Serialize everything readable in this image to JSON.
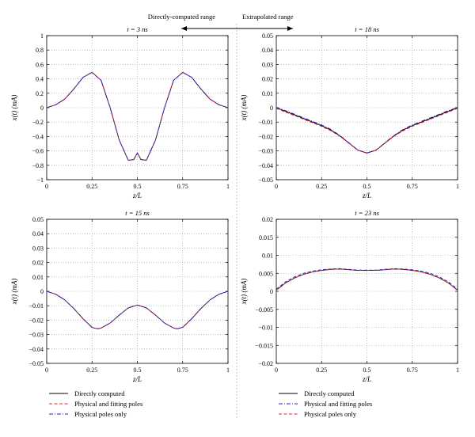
{
  "header": {
    "left": "Directly-computed range",
    "right": "Extrapolated range"
  },
  "colors": {
    "directly_computed": "#000000",
    "physical_and_fitting": "#e8202a",
    "physical_only": "#2323c8",
    "grid": "#9a9a9a",
    "divider": "#9a9a9a"
  },
  "chart_data": [
    {
      "type": "line",
      "title": "t = 3 ns",
      "xlabel": "z/L",
      "ylabel": "x(t) (mA)",
      "xlim": [
        0,
        1
      ],
      "ylim": [
        -1,
        1
      ],
      "xticks": [
        "0",
        "0.25",
        "0.5",
        "0.75",
        "1"
      ],
      "yticks": [
        "1",
        "0.8",
        "0.6",
        "0.4",
        "0.2",
        "0",
        "−0.2",
        "−0.4",
        "−0.6",
        "−0.8",
        "−1"
      ],
      "grid": true,
      "x": [
        0,
        0.05,
        0.1,
        0.15,
        0.2,
        0.25,
        0.3,
        0.35,
        0.4,
        0.45,
        0.48,
        0.5,
        0.52,
        0.55,
        0.6,
        0.65,
        0.7,
        0.75,
        0.8,
        0.85,
        0.9,
        0.95,
        1
      ],
      "series": [
        {
          "name": "Directly computed",
          "values": [
            0,
            0.04,
            0.12,
            0.26,
            0.42,
            0.49,
            0.38,
            0.0,
            -0.45,
            -0.73,
            -0.72,
            -0.63,
            -0.72,
            -0.73,
            -0.45,
            0.0,
            0.38,
            0.49,
            0.42,
            0.26,
            0.12,
            0.04,
            0
          ]
        },
        {
          "name": "Physical and fitting poles",
          "values": [
            0,
            0.04,
            0.12,
            0.26,
            0.42,
            0.49,
            0.38,
            0.0,
            -0.45,
            -0.73,
            -0.72,
            -0.63,
            -0.72,
            -0.73,
            -0.45,
            0.0,
            0.38,
            0.49,
            0.42,
            0.26,
            0.12,
            0.04,
            0
          ]
        },
        {
          "name": "Physical poles only",
          "values": [
            0,
            0.04,
            0.12,
            0.26,
            0.42,
            0.49,
            0.38,
            0.0,
            -0.45,
            -0.73,
            -0.72,
            -0.63,
            -0.72,
            -0.73,
            -0.45,
            0.0,
            0.38,
            0.49,
            0.42,
            0.26,
            0.12,
            0.04,
            0
          ]
        }
      ]
    },
    {
      "type": "line",
      "title": "t = 18 ns",
      "xlabel": "z/L",
      "ylabel": "x(t) (mA)",
      "xlim": [
        0,
        1
      ],
      "ylim": [
        -0.05,
        0.05
      ],
      "xticks": [
        "0",
        "0.25",
        "0.5",
        "0.75",
        "1"
      ],
      "yticks": [
        "0.05",
        "0.04",
        "0.03",
        "0.02",
        "0.01",
        "0",
        "−0.01",
        "−0.02",
        "−0.03",
        "−0.04",
        "−0.05"
      ],
      "grid": true,
      "x": [
        0,
        0.05,
        0.1,
        0.15,
        0.2,
        0.25,
        0.3,
        0.35,
        0.4,
        0.45,
        0.5,
        0.55,
        0.6,
        0.65,
        0.7,
        0.75,
        0.8,
        0.85,
        0.9,
        0.95,
        1
      ],
      "series": [
        {
          "name": "Directly computed",
          "values": [
            0,
            -0.0025,
            -0.005,
            -0.0075,
            -0.01,
            -0.0125,
            -0.0155,
            -0.0195,
            -0.0245,
            -0.0295,
            -0.0315,
            -0.0295,
            -0.0245,
            -0.0195,
            -0.0155,
            -0.0125,
            -0.01,
            -0.0075,
            -0.005,
            -0.0025,
            0
          ]
        },
        {
          "name": "Physical and fitting poles",
          "values": [
            -0.0005,
            -0.003,
            -0.0055,
            -0.008,
            -0.0105,
            -0.013,
            -0.016,
            -0.0198,
            -0.0246,
            -0.0296,
            -0.0316,
            -0.0296,
            -0.0246,
            -0.0198,
            -0.016,
            -0.013,
            -0.0105,
            -0.008,
            -0.0055,
            -0.003,
            -0.0005
          ]
        },
        {
          "name": "Physical poles only",
          "values": [
            0.0002,
            -0.002,
            -0.0045,
            -0.007,
            -0.0095,
            -0.012,
            -0.015,
            -0.0192,
            -0.0243,
            -0.0294,
            -0.0314,
            -0.0294,
            -0.0243,
            -0.0192,
            -0.015,
            -0.012,
            -0.0095,
            -0.007,
            -0.0045,
            -0.002,
            0.0002
          ]
        }
      ]
    },
    {
      "type": "line",
      "title": "t = 15 ns",
      "xlabel": "z/L",
      "ylabel": "x(t) (mA)",
      "xlim": [
        0,
        1
      ],
      "ylim": [
        -0.05,
        0.05
      ],
      "xticks": [
        "0",
        "0.25",
        "0.5",
        "0.75",
        "1"
      ],
      "yticks": [
        "0.05",
        "0.04",
        "0.03",
        "0.02",
        "0.01",
        "0",
        "−0.01",
        "−0.02",
        "−0.03",
        "−0.04",
        "−0.05"
      ],
      "grid": true,
      "x": [
        0,
        0.05,
        0.1,
        0.15,
        0.2,
        0.25,
        0.28,
        0.3,
        0.35,
        0.4,
        0.45,
        0.5,
        0.55,
        0.6,
        0.65,
        0.7,
        0.72,
        0.75,
        0.8,
        0.85,
        0.9,
        0.95,
        1
      ],
      "series": [
        {
          "name": "Directly computed",
          "values": [
            0,
            -0.002,
            -0.006,
            -0.012,
            -0.019,
            -0.025,
            -0.026,
            -0.0255,
            -0.022,
            -0.0165,
            -0.0115,
            -0.0095,
            -0.0115,
            -0.0165,
            -0.022,
            -0.0255,
            -0.026,
            -0.025,
            -0.019,
            -0.012,
            -0.006,
            -0.002,
            0
          ]
        },
        {
          "name": "Physical and fitting poles",
          "values": [
            0,
            -0.002,
            -0.006,
            -0.012,
            -0.019,
            -0.025,
            -0.026,
            -0.0255,
            -0.022,
            -0.0165,
            -0.0115,
            -0.0095,
            -0.0115,
            -0.0165,
            -0.022,
            -0.0255,
            -0.026,
            -0.025,
            -0.019,
            -0.012,
            -0.006,
            -0.002,
            0
          ]
        },
        {
          "name": "Physical poles only",
          "values": [
            0,
            -0.002,
            -0.006,
            -0.012,
            -0.019,
            -0.025,
            -0.026,
            -0.0255,
            -0.022,
            -0.0165,
            -0.0115,
            -0.0095,
            -0.0115,
            -0.0165,
            -0.022,
            -0.0255,
            -0.026,
            -0.025,
            -0.019,
            -0.012,
            -0.006,
            -0.002,
            0
          ]
        }
      ]
    },
    {
      "type": "line",
      "title": "t = 23 ns",
      "xlabel": "z/L",
      "ylabel": "x(t) (mA)",
      "xlim": [
        0,
        1
      ],
      "ylim": [
        -0.02,
        0.02
      ],
      "xticks": [
        "0",
        "0.25",
        "0.5",
        "0.75",
        "1"
      ],
      "yticks": [
        "0.02",
        "0.015",
        "0.01",
        "0.005",
        "0",
        "−0.005",
        "−0.01",
        "−0.015",
        "−0.02"
      ],
      "grid": true,
      "x": [
        0,
        0.05,
        0.1,
        0.15,
        0.2,
        0.25,
        0.3,
        0.35,
        0.4,
        0.45,
        0.5,
        0.55,
        0.6,
        0.65,
        0.7,
        0.75,
        0.8,
        0.85,
        0.9,
        0.95,
        1
      ],
      "series": [
        {
          "name": "Directly computed",
          "values": [
            0.0003,
            0.0023,
            0.0037,
            0.0047,
            0.0054,
            0.0058,
            0.0061,
            0.0062,
            0.006,
            0.0058,
            0.0058,
            0.0058,
            0.006,
            0.0062,
            0.0061,
            0.0058,
            0.0054,
            0.0047,
            0.0037,
            0.0023,
            0.0003
          ]
        },
        {
          "name": "Physical and fitting poles",
          "values": [
            0.0003,
            0.0023,
            0.0037,
            0.0047,
            0.0054,
            0.0058,
            0.0061,
            0.0062,
            0.006,
            0.0058,
            0.0058,
            0.0058,
            0.006,
            0.0062,
            0.0061,
            0.0058,
            0.0054,
            0.0047,
            0.0037,
            0.0023,
            0.0003
          ]
        },
        {
          "name": "Physical poles only",
          "values": [
            0.0006,
            0.0026,
            0.004,
            0.005,
            0.0056,
            0.006,
            0.0062,
            0.0063,
            0.0061,
            0.0059,
            0.0059,
            0.0059,
            0.0061,
            0.0063,
            0.0062,
            0.006,
            0.0056,
            0.005,
            0.004,
            0.0026,
            0.0006
          ]
        }
      ]
    }
  ],
  "legends": [
    {
      "entries": [
        {
          "label": "Directly computed",
          "color": "#000000",
          "dash": "solid"
        },
        {
          "label": "Physical and fitting poles",
          "color": "#e8202a",
          "dash": "dashed"
        },
        {
          "label": "Physical poles only",
          "color": "#2323c8",
          "dash": "dashdot"
        }
      ]
    },
    {
      "entries": [
        {
          "label": "Directly computed",
          "color": "#000000",
          "dash": "solid"
        },
        {
          "label": "Physical and fitting poles",
          "color": "#2323c8",
          "dash": "dashdot"
        },
        {
          "label": "Physical poles only",
          "color": "#e8202a",
          "dash": "dashed"
        }
      ]
    }
  ]
}
